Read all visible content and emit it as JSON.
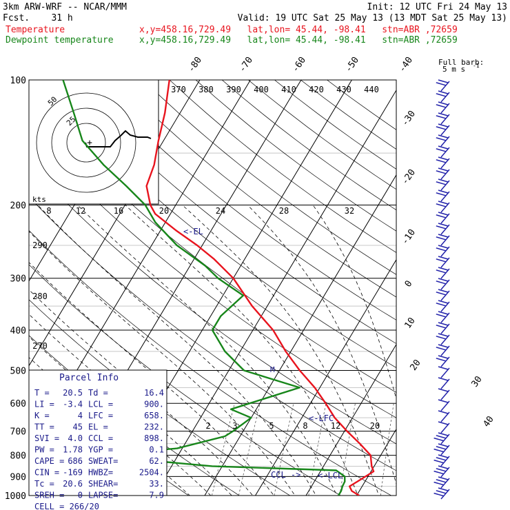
{
  "header": {
    "model": "3km ARW-WRF -- NCAR/MMM",
    "init": "Init: 12 UTC Fri 24 May 13",
    "fcst": "Fcst.    31 h",
    "valid": "Valid: 19 UTC Sat 25 May 13 (13 MDT Sat 25 May 13)",
    "temp_label": "Temperature",
    "temp_loc": "x,y=458.16,729.49   lat,lon= 45.44, -98.41   stn=ABR ,72659",
    "dew_label": "Dewpoint temperature",
    "dew_loc": "x,y=458.16,729.49   lat,lon= 45.44, -98.41   stn=ABR ,72659"
  },
  "colors": {
    "temperature": "#e8141e",
    "dewpoint": "#17861a",
    "hodograph": "#000000",
    "barbs": "#2222aa",
    "labels": "#1a1a8a"
  },
  "barb_key": {
    "line1": "Full barb:",
    "line2": "5 m s",
    "exp": "-1"
  },
  "parcel": {
    "title": "Parcel Info",
    "rows": [
      [
        "T  =",
        "20.5",
        "Td =",
        "16.4"
      ],
      [
        "LI =",
        "-3.4",
        "LCL =",
        "900."
      ],
      [
        "K  =",
        "4",
        "LFC =",
        "658."
      ],
      [
        "TT =",
        "45",
        "EL  =",
        "232."
      ],
      [
        "SVI =",
        "4.0",
        "CCL =",
        "898."
      ],
      [
        "PW =",
        "1.78",
        "YGP =",
        "0.1"
      ],
      [
        "CAPE =",
        "686",
        "SWEAT=",
        "62."
      ],
      [
        "CIN =",
        "-169",
        "HWBZ=",
        "2504."
      ],
      [
        "Tc =",
        "20.6",
        "SHEAR=",
        "33."
      ],
      [
        "SREH =",
        "0",
        "LAPSE=",
        "7.9"
      ]
    ],
    "cell": "CELL = 266/20"
  },
  "levels_text": {
    "lfc": "<-LFC",
    "lcl": "<-LCL",
    "ccl": "CCL ->",
    "el": "<-EL",
    "mark": "M"
  },
  "hodograph": {
    "speed_unit": "kts",
    "ring_labels": [
      "25",
      "50"
    ],
    "ticks": [
      "8",
      "12",
      "16",
      "20",
      "24",
      "28",
      "32"
    ]
  },
  "chart_data": {
    "type": "line",
    "title": "",
    "ylabel": "",
    "xlabel": "",
    "y_scale": "log",
    "pressure_levels": [
      100,
      200,
      300,
      400,
      500,
      600,
      700,
      800,
      900,
      1000
    ],
    "isotherm_labels": [
      "-80",
      "-70",
      "-60",
      "-50",
      "-40",
      "-30",
      "-20",
      "-10",
      "0",
      "10",
      "20",
      "30",
      "40"
    ],
    "isotherm_values": [
      -80,
      -70,
      -60,
      -50,
      -40,
      -30,
      -20,
      -10,
      0,
      10,
      20,
      30,
      40
    ],
    "theta_labels": [
      "370",
      "380",
      "390",
      "400",
      "410",
      "420",
      "430",
      "440"
    ],
    "theta_side_labels": [
      "290",
      "280",
      "270"
    ],
    "mixing_ratio_labels": [
      "2",
      "3",
      "5",
      "8",
      "12",
      "20"
    ],
    "series": [
      {
        "name": "Temperature",
        "points": [
          [
            1000,
            20.5
          ],
          [
            975,
            18.5
          ],
          [
            950,
            17.5
          ],
          [
            925,
            18.5
          ],
          [
            900,
            19.5
          ],
          [
            875,
            20.5
          ],
          [
            850,
            19.5
          ],
          [
            800,
            18
          ],
          [
            750,
            14.5
          ],
          [
            700,
            10.5
          ],
          [
            650,
            6.5
          ],
          [
            600,
            3
          ],
          [
            550,
            -1
          ],
          [
            500,
            -6
          ],
          [
            450,
            -11
          ],
          [
            400,
            -16
          ],
          [
            350,
            -23
          ],
          [
            300,
            -30
          ],
          [
            270,
            -36
          ],
          [
            250,
            -41
          ],
          [
            230,
            -47
          ],
          [
            210,
            -53
          ],
          [
            200,
            -55
          ],
          [
            180,
            -58
          ],
          [
            160,
            -59
          ],
          [
            140,
            -61
          ],
          [
            120,
            -63
          ],
          [
            100,
            -66
          ]
        ]
      },
      {
        "name": "Dewpoint temperature",
        "points": [
          [
            1000,
            16.4
          ],
          [
            975,
            16.4
          ],
          [
            950,
            16.1
          ],
          [
            925,
            16
          ],
          [
            900,
            15.4
          ],
          [
            870,
            13
          ],
          [
            850,
            -12
          ],
          [
            800,
            -37
          ],
          [
            770,
            -21
          ],
          [
            720,
            -13
          ],
          [
            700,
            -12
          ],
          [
            650,
            -10
          ],
          [
            620,
            -15
          ],
          [
            600,
            -12
          ],
          [
            550,
            -4
          ],
          [
            500,
            -17
          ],
          [
            450,
            -23
          ],
          [
            400,
            -28
          ],
          [
            370,
            -28
          ],
          [
            330,
            -26
          ],
          [
            300,
            -33
          ],
          [
            280,
            -37
          ],
          [
            250,
            -45
          ],
          [
            220,
            -52
          ],
          [
            200,
            -56
          ],
          [
            180,
            -62
          ],
          [
            160,
            -69
          ],
          [
            140,
            -76
          ],
          [
            120,
            -81
          ],
          [
            100,
            -87
          ]
        ]
      }
    ],
    "wind_barb_count": 38
  }
}
